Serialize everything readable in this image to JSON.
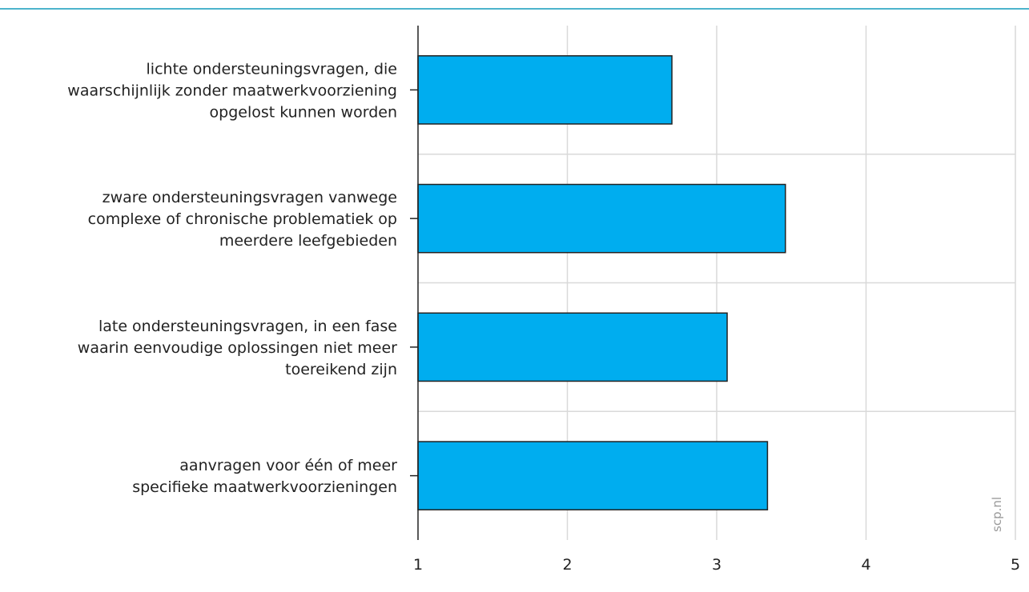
{
  "chart_data": {
    "type": "bar",
    "orientation": "horizontal",
    "categories": [
      [
        "lichte ondersteuningsvragen, die",
        "waarschijnlijk zonder maatwerkvoorziening",
        "opgelost kunnen worden"
      ],
      [
        "zware ondersteuningsvragen vanwege",
        "complexe of chronische problematiek op",
        "meerdere leefgebieden"
      ],
      [
        "late ondersteuningsvragen, in een fase",
        "waarin eenvoudige oplossingen niet meer",
        "toereikend zijn"
      ],
      [
        "aanvragen voor één of meer",
        "specifieke maatwerkvoorzieningen"
      ]
    ],
    "values": [
      2.7,
      3.46,
      3.07,
      3.34
    ],
    "xlim": [
      1,
      5
    ],
    "xticks": [
      "1",
      "2",
      "3",
      "4",
      "5"
    ],
    "grid": true,
    "bar_color": "#00adef",
    "xlabel": "",
    "ylabel": ""
  },
  "watermark": "scp.nl",
  "colors": {
    "top_rule": "#4db4cc",
    "grid": "#d9d9d9",
    "axis": "#222222"
  }
}
